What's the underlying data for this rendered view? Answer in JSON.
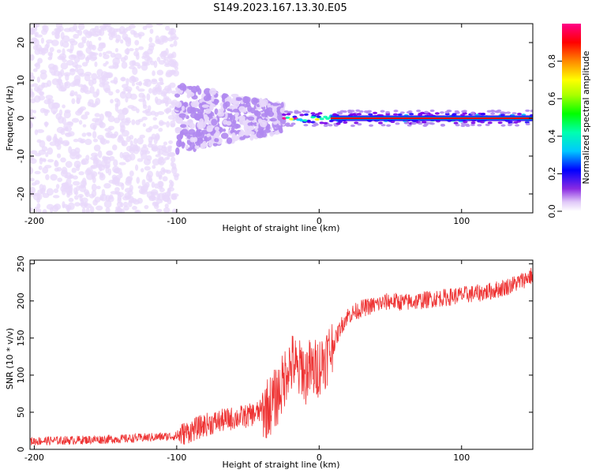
{
  "title": "S149.2023.167.13.30.E05",
  "chart_data": [
    {
      "type": "heatmap",
      "id": "spectrogram",
      "xlabel": "Height of straight line (km)",
      "ylabel": "Frequency (Hz)",
      "xlim": [
        -203,
        150
      ],
      "ylim": [
        -25,
        25
      ],
      "xticks": [
        -200,
        -100,
        0,
        100
      ],
      "yticks": [
        -20,
        -10,
        0,
        10,
        20
      ],
      "colorbar": {
        "label": "Normalized spectral amplitude",
        "range": [
          0,
          1
        ],
        "ticks": [
          0.0,
          0.2,
          0.4,
          0.6,
          0.8
        ]
      },
      "description_bands": [
        {
          "x_from": -203,
          "x_to": -100,
          "freq_spread": 25,
          "amplitude": 0.1
        },
        {
          "x_from": -100,
          "x_to": -25,
          "freq_spread": 9,
          "amplitude": 0.2
        },
        {
          "x_from": -25,
          "x_to": 150,
          "freq_spread": 2,
          "amplitude": 0.75
        }
      ]
    },
    {
      "type": "line",
      "id": "snr",
      "xlabel": "Height of straight line (km)",
      "ylabel": "SNR (10 * v/v)",
      "xlim": [
        -203,
        150
      ],
      "ylim": [
        0,
        255
      ],
      "xticks": [
        -200,
        -100,
        0,
        100
      ],
      "yticks": [
        0,
        50,
        100,
        150,
        200,
        250
      ],
      "color": "#ee3333",
      "series": [
        {
          "name": "SNR",
          "x": [
            -203,
            -180,
            -160,
            -140,
            -120,
            -100,
            -90,
            -80,
            -70,
            -60,
            -50,
            -40,
            -35,
            -30,
            -25,
            -22,
            -20,
            -18,
            -15,
            -12,
            -10,
            -8,
            -5,
            0,
            5,
            10,
            15,
            20,
            25,
            30,
            40,
            50,
            60,
            70,
            80,
            90,
            100,
            110,
            120,
            130,
            140,
            150
          ],
          "values": [
            11,
            12,
            13,
            14,
            16,
            18,
            25,
            33,
            38,
            42,
            45,
            52,
            58,
            70,
            90,
            115,
            110,
            120,
            100,
            115,
            95,
            110,
            105,
            112,
            125,
            140,
            165,
            180,
            185,
            190,
            195,
            200,
            198,
            200,
            203,
            205,
            208,
            210,
            213,
            218,
            225,
            235
          ]
        }
      ]
    }
  ]
}
